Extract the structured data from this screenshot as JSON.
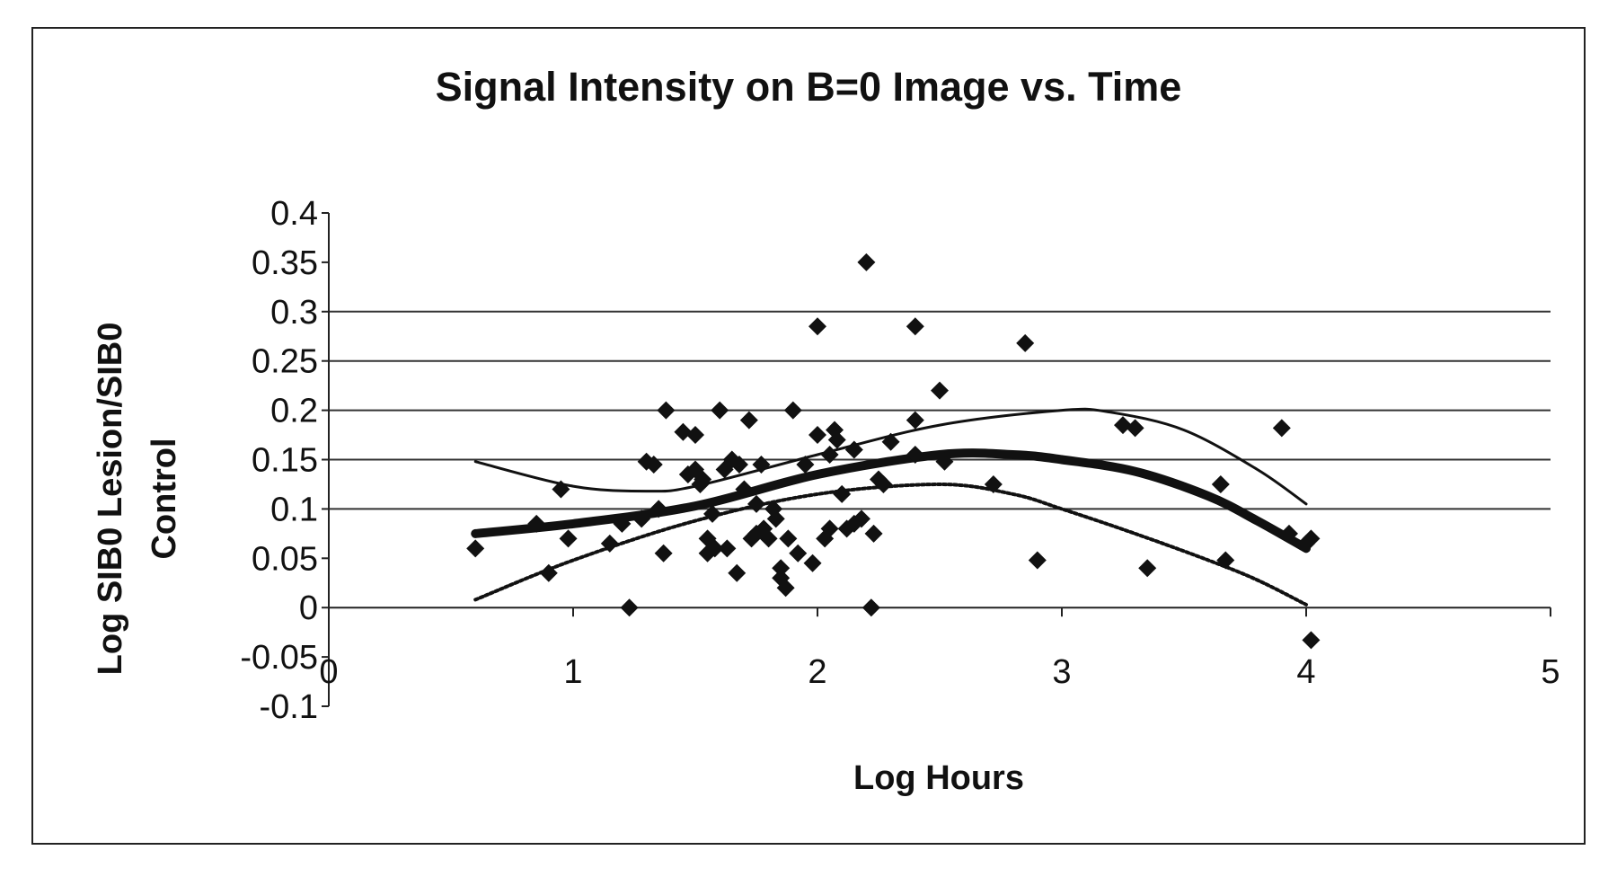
{
  "chart_data": {
    "type": "scatter",
    "title": "Signal Intensity on B=0 Image vs. Time",
    "xlabel": "Log Hours",
    "ylabel_lines": [
      "Log SIB0 Lesion/SIB0",
      "Control"
    ],
    "xlim": [
      0,
      5
    ],
    "ylim": [
      -0.1,
      0.4
    ],
    "x_ticks": [
      "0",
      "1",
      "2",
      "3",
      "4",
      "5"
    ],
    "y_ticks": [
      "0.4",
      "0.35",
      "0.3",
      "0.25",
      "0.2",
      "0.15",
      "0.1",
      "0.05",
      "0",
      "-0.05",
      "-0.1"
    ],
    "gridlines_y": [
      0.1,
      0.15,
      0.2,
      0.25,
      0.3
    ],
    "legend": "none",
    "series": [
      {
        "kind": "scatter",
        "marker": "diamond",
        "color": "#111111",
        "points": [
          [
            0.6,
            0.06
          ],
          [
            0.85,
            0.085
          ],
          [
            0.9,
            0.035
          ],
          [
            0.95,
            0.12
          ],
          [
            0.98,
            0.07
          ],
          [
            1.15,
            0.065
          ],
          [
            1.2,
            0.085
          ],
          [
            1.23,
            0.0
          ],
          [
            1.28,
            0.09
          ],
          [
            1.3,
            0.148
          ],
          [
            1.33,
            0.145
          ],
          [
            1.35,
            0.1
          ],
          [
            1.37,
            0.055
          ],
          [
            1.38,
            0.2
          ],
          [
            1.45,
            0.178
          ],
          [
            1.47,
            0.135
          ],
          [
            1.5,
            0.175
          ],
          [
            1.5,
            0.14
          ],
          [
            1.52,
            0.125
          ],
          [
            1.53,
            0.13
          ],
          [
            1.55,
            0.055
          ],
          [
            1.55,
            0.07
          ],
          [
            1.57,
            0.095
          ],
          [
            1.58,
            0.06
          ],
          [
            1.6,
            0.2
          ],
          [
            1.62,
            0.14
          ],
          [
            1.63,
            0.06
          ],
          [
            1.65,
            0.15
          ],
          [
            1.67,
            0.035
          ],
          [
            1.68,
            0.145
          ],
          [
            1.7,
            0.12
          ],
          [
            1.72,
            0.19
          ],
          [
            1.73,
            0.07
          ],
          [
            1.75,
            0.075
          ],
          [
            1.75,
            0.105
          ],
          [
            1.77,
            0.145
          ],
          [
            1.78,
            0.08
          ],
          [
            1.8,
            0.07
          ],
          [
            1.82,
            0.1
          ],
          [
            1.83,
            0.09
          ],
          [
            1.85,
            0.04
          ],
          [
            1.85,
            0.03
          ],
          [
            1.87,
            0.02
          ],
          [
            1.88,
            0.07
          ],
          [
            1.9,
            0.2
          ],
          [
            1.92,
            0.055
          ],
          [
            1.95,
            0.145
          ],
          [
            1.98,
            0.045
          ],
          [
            2.0,
            0.285
          ],
          [
            2.0,
            0.175
          ],
          [
            2.03,
            0.07
          ],
          [
            2.05,
            0.08
          ],
          [
            2.05,
            0.155
          ],
          [
            2.07,
            0.18
          ],
          [
            2.08,
            0.17
          ],
          [
            2.1,
            0.115
          ],
          [
            2.12,
            0.08
          ],
          [
            2.15,
            0.085
          ],
          [
            2.15,
            0.16
          ],
          [
            2.18,
            0.09
          ],
          [
            2.2,
            0.35
          ],
          [
            2.22,
            0.0
          ],
          [
            2.23,
            0.075
          ],
          [
            2.25,
            0.13
          ],
          [
            2.27,
            0.125
          ],
          [
            2.3,
            0.168
          ],
          [
            2.4,
            0.285
          ],
          [
            2.4,
            0.19
          ],
          [
            2.4,
            0.155
          ],
          [
            2.5,
            0.22
          ],
          [
            2.52,
            0.148
          ],
          [
            2.72,
            0.125
          ],
          [
            2.85,
            0.268
          ],
          [
            2.9,
            0.048
          ],
          [
            3.25,
            0.185
          ],
          [
            3.3,
            0.182
          ],
          [
            3.35,
            0.04
          ],
          [
            3.65,
            0.125
          ],
          [
            3.67,
            0.048
          ],
          [
            3.9,
            0.182
          ],
          [
            3.93,
            0.075
          ],
          [
            4.0,
            0.065
          ],
          [
            4.02,
            0.07
          ],
          [
            4.02,
            -0.033
          ]
        ]
      },
      {
        "kind": "line",
        "style": "thick-solid",
        "color": "#111111",
        "points": [
          [
            0.6,
            0.075
          ],
          [
            1.0,
            0.085
          ],
          [
            1.5,
            0.103
          ],
          [
            2.0,
            0.135
          ],
          [
            2.5,
            0.155
          ],
          [
            2.8,
            0.155
          ],
          [
            3.0,
            0.15
          ],
          [
            3.3,
            0.138
          ],
          [
            3.6,
            0.113
          ],
          [
            3.8,
            0.088
          ],
          [
            4.0,
            0.06
          ]
        ]
      },
      {
        "kind": "line",
        "style": "thin-solid",
        "color": "#111111",
        "points": [
          [
            0.6,
            0.148
          ],
          [
            1.0,
            0.123
          ],
          [
            1.3,
            0.118
          ],
          [
            1.5,
            0.123
          ],
          [
            2.0,
            0.155
          ],
          [
            2.5,
            0.185
          ],
          [
            3.0,
            0.2
          ],
          [
            3.2,
            0.198
          ],
          [
            3.5,
            0.18
          ],
          [
            3.8,
            0.14
          ],
          [
            4.0,
            0.105
          ]
        ]
      },
      {
        "kind": "line",
        "style": "dotted",
        "color": "#111111",
        "points": [
          [
            0.6,
            0.008
          ],
          [
            1.0,
            0.048
          ],
          [
            1.5,
            0.088
          ],
          [
            2.0,
            0.115
          ],
          [
            2.5,
            0.125
          ],
          [
            2.8,
            0.115
          ],
          [
            3.0,
            0.1
          ],
          [
            3.3,
            0.075
          ],
          [
            3.6,
            0.048
          ],
          [
            3.8,
            0.028
          ],
          [
            4.0,
            0.003
          ]
        ]
      }
    ]
  }
}
